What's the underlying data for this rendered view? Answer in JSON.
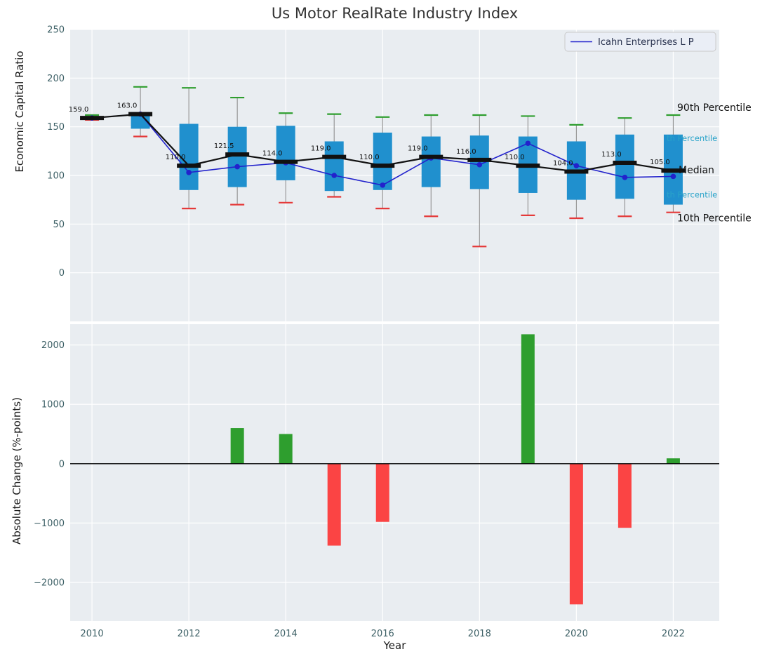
{
  "title": "Us Motor RealRate Industry Index",
  "axes": {
    "top_ylabel": "Economic Capital Ratio",
    "bottom_ylabel": "Absolute Change (%-points)",
    "xlabel": "Year"
  },
  "legend": {
    "entries": [
      {
        "label": "Icahn Enterprises L P",
        "color": "#2222cc"
      }
    ]
  },
  "right_labels": [
    {
      "id": "p90-label",
      "text": "90th Percentile",
      "color": "#111111"
    },
    {
      "id": "p75-label",
      "text": "th Percentile",
      "color": "#29a3c9"
    },
    {
      "id": "median-label",
      "text": "Median",
      "color": "#111111"
    },
    {
      "id": "p25-label",
      "text": "th Percentile",
      "color": "#29a3c9"
    },
    {
      "id": "p10-label",
      "text": "10th Percentile",
      "color": "#111111"
    }
  ],
  "colors": {
    "panel_bg": "#e9edf1",
    "grid": "#ffffff",
    "box": "#2090ce",
    "whisker": "#8f8f8f",
    "p90_cap": "#2e9e2e",
    "p10_cap": "#e53939",
    "median": "#111111",
    "company_line": "#2222cc",
    "bar_positive": "#2e9e2e",
    "bar_negative": "#fb4444",
    "tick": "#3d6066",
    "zero_line": "#000000"
  },
  "chart_data": [
    {
      "type": "boxplot",
      "panel": "top",
      "title": "Us Motor RealRate Industry Index",
      "ylabel": "Economic Capital Ratio",
      "ylim": [
        -50,
        250
      ],
      "yticks": [
        0,
        50,
        100,
        150,
        200,
        250
      ],
      "xlim": [
        2009.55,
        2022.95
      ],
      "grid": true,
      "legend_position": "upper right",
      "years": [
        2010,
        2011,
        2012,
        2013,
        2014,
        2015,
        2016,
        2017,
        2018,
        2019,
        2020,
        2021,
        2022
      ],
      "p90": [
        162,
        191,
        190,
        180,
        164,
        163,
        160,
        162,
        162,
        161,
        152,
        159,
        162
      ],
      "p75": [
        160,
        165,
        153,
        150,
        151,
        135,
        144,
        140,
        141,
        140,
        135,
        142,
        142
      ],
      "median": [
        159,
        163,
        110,
        121.5,
        114,
        119,
        110,
        119,
        116,
        110,
        104,
        113,
        105
      ],
      "p25": [
        158,
        148,
        85,
        88,
        95,
        84,
        85,
        88,
        86,
        82,
        75,
        76,
        70
      ],
      "p10": [
        157,
        140,
        66,
        70,
        72,
        78,
        66,
        58,
        27,
        59,
        56,
        58,
        62
      ],
      "median_labels": [
        "159.0",
        "163.0",
        "110.0",
        "121.5",
        "114.0",
        "119.0",
        "110.0",
        "119.0",
        "116.0",
        "110.0",
        "104.0",
        "113.0",
        "105.0"
      ],
      "series": [
        {
          "name": "Icahn Enterprises L P",
          "values": [
            159,
            163,
            103,
            109,
            113,
            100,
            90,
            118,
            111,
            133,
            110,
            98,
            99
          ]
        }
      ],
      "annotations": [
        "90th Percentile",
        "th Percentile",
        "Median",
        "th Percentile",
        "10th Percentile"
      ]
    },
    {
      "type": "bar",
      "panel": "bottom",
      "ylabel": "Absolute Change (%-points)",
      "xlabel": "Year",
      "ylim": [
        -2650,
        2350
      ],
      "yticks": [
        -2000,
        -1000,
        0,
        1000,
        2000
      ],
      "xticks": [
        2010,
        2012,
        2014,
        2016,
        2018,
        2020,
        2022
      ],
      "grid": true,
      "years": [
        2010,
        2011,
        2012,
        2013,
        2014,
        2015,
        2016,
        2017,
        2018,
        2019,
        2020,
        2021,
        2022
      ],
      "values": [
        0,
        0,
        0,
        600,
        500,
        -1380,
        -980,
        0,
        0,
        2180,
        -2370,
        -1080,
        90
      ]
    }
  ]
}
